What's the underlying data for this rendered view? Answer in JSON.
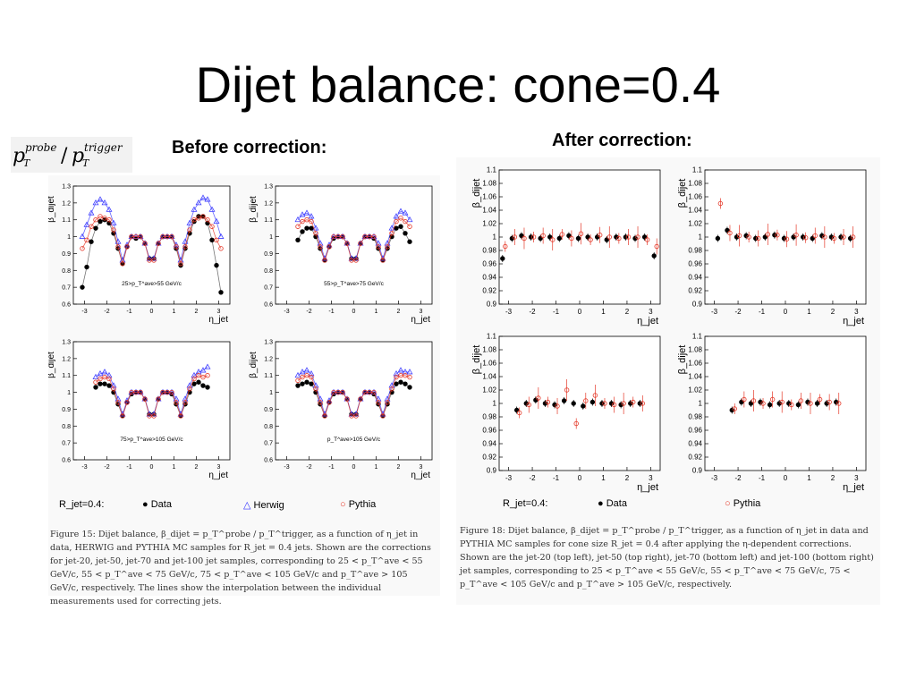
{
  "slide": {
    "title": "Dijet balance: cone=0.4",
    "formula": "p_T^probe / p_T^trigger",
    "before_label": "Before correction:",
    "after_label": "After correction:"
  },
  "left": {
    "legend": {
      "rjet": "R_jet=0.4:",
      "data": "Data",
      "herwig": "Herwig",
      "pythia": "Pythia"
    },
    "caption": "Figure 15: Dijet balance, β_dijet = p_T^probe / p_T^trigger, as a function of η_jet in data, HERWIG and PYTHIA MC samples for R_jet = 0.4 jets. Shown are the corrections for jet-20, jet-50, jet-70 and jet-100 jet samples, corresponding to 25 < p_T^ave < 55 GeV/c, 55 < p_T^ave < 75 GeV/c, 75 < p_T^ave < 105 GeV/c and p_T^ave > 105 GeV/c, respectively. The lines show the interpolation between the individual measurements used for correcting jets."
  },
  "right": {
    "legend": {
      "rjet": "R_jet=0.4:",
      "data": "Data",
      "pythia": "Pythia"
    },
    "caption": "Figure 18: Dijet balance, β_dijet = p_T^probe / p_T^trigger, as a function of η_jet in data and PYTHIA MC samples for cone size R_jet = 0.4 after applying the η-dependent corrections. Shown are the jet-20 (top left), jet-50 (top right), jet-70 (bottom left) and jet-100 (bottom right) jet samples, corresponding to 25 < p_T^ave < 55 GeV/c, 55 < p_T^ave < 75 GeV/c, 75 < p_T^ave < 105 GeV/c and p_T^ave > 105 GeV/c, respectively."
  },
  "chart_data": [
    {
      "type": "scatter",
      "id": "before-top-left",
      "xlabel": "η_jet",
      "ylabel": "β_dijet",
      "xlim": [
        -3.5,
        3.5
      ],
      "ylim": [
        0.6,
        1.3
      ],
      "xticks": [
        "-3",
        "-2",
        "-1",
        "0",
        "1",
        "2",
        "3"
      ],
      "yticks": [
        "0.6",
        "0.7",
        "0.8",
        "0.9",
        "1",
        "1.1",
        "1.2",
        "1.3"
      ],
      "annotation": "25>p_T^ave>55 GeV/c",
      "x": [
        -3.1,
        -2.9,
        -2.7,
        -2.5,
        -2.3,
        -2.1,
        -1.9,
        -1.7,
        -1.5,
        -1.3,
        -1.1,
        -0.9,
        -0.7,
        -0.5,
        -0.3,
        -0.1,
        0.1,
        0.3,
        0.5,
        0.7,
        0.9,
        1.1,
        1.3,
        1.5,
        1.7,
        1.9,
        2.1,
        2.3,
        2.5,
        2.7,
        2.9,
        3.1
      ],
      "series": [
        {
          "name": "Data",
          "values": [
            0.7,
            0.82,
            0.97,
            1.05,
            1.09,
            1.1,
            1.08,
            1.02,
            0.93,
            0.84,
            0.94,
            1.0,
            0.99,
            1.0,
            0.96,
            0.87,
            0.87,
            0.96,
            1.0,
            1.0,
            1.0,
            0.93,
            0.83,
            0.93,
            1.02,
            1.09,
            1.12,
            1.12,
            1.08,
            0.98,
            0.83,
            0.67
          ]
        },
        {
          "name": "Herwig",
          "values": [
            1.0,
            1.07,
            1.14,
            1.2,
            1.22,
            1.2,
            1.16,
            1.08,
            0.97,
            0.86,
            0.95,
            1.0,
            1.0,
            1.0,
            0.96,
            0.87,
            0.87,
            0.96,
            1.0,
            1.0,
            1.0,
            0.95,
            0.86,
            0.97,
            1.08,
            1.16,
            1.2,
            1.23,
            1.22,
            1.16,
            1.09,
            1.0
          ]
        },
        {
          "name": "Pythia",
          "values": [
            0.93,
            0.98,
            1.06,
            1.1,
            1.12,
            1.11,
            1.1,
            1.04,
            0.94,
            0.84,
            0.94,
            1.0,
            1.0,
            1.0,
            0.96,
            0.86,
            0.86,
            0.96,
            1.0,
            1.0,
            1.0,
            0.94,
            0.84,
            0.94,
            1.04,
            1.1,
            1.11,
            1.12,
            1.1,
            1.06,
            0.98,
            0.93
          ]
        }
      ]
    },
    {
      "type": "scatter",
      "id": "before-top-right",
      "xlabel": "η_jet",
      "ylabel": "β_dijet",
      "xlim": [
        -3.5,
        3.5
      ],
      "ylim": [
        0.6,
        1.3
      ],
      "xticks": [
        "-3",
        "-2",
        "-1",
        "0",
        "1",
        "2",
        "3"
      ],
      "yticks": [
        "0.6",
        "0.7",
        "0.8",
        "0.9",
        "1",
        "1.1",
        "1.2",
        "1.3"
      ],
      "annotation": "55>p_T^ave>75 GeV/c",
      "x": [
        -2.5,
        -2.3,
        -2.1,
        -1.9,
        -1.7,
        -1.5,
        -1.3,
        -1.1,
        -0.9,
        -0.7,
        -0.5,
        -0.3,
        -0.1,
        0.1,
        0.3,
        0.5,
        0.7,
        0.9,
        1.1,
        1.3,
        1.5,
        1.7,
        1.9,
        2.1,
        2.3,
        2.5
      ],
      "series": [
        {
          "name": "Data",
          "values": [
            0.98,
            1.03,
            1.05,
            1.05,
            1.0,
            0.93,
            0.86,
            0.94,
            0.99,
            1.0,
            1.0,
            0.96,
            0.87,
            0.87,
            0.96,
            1.0,
            1.0,
            0.99,
            0.93,
            0.86,
            0.93,
            1.0,
            1.05,
            1.06,
            1.02,
            0.97
          ]
        },
        {
          "name": "Herwig",
          "values": [
            1.1,
            1.13,
            1.14,
            1.12,
            1.05,
            0.96,
            0.87,
            0.95,
            1.0,
            1.0,
            1.0,
            0.96,
            0.87,
            0.87,
            0.96,
            1.0,
            1.0,
            1.0,
            0.96,
            0.87,
            0.96,
            1.05,
            1.12,
            1.15,
            1.14,
            1.1
          ]
        },
        {
          "name": "Pythia",
          "values": [
            1.06,
            1.09,
            1.1,
            1.09,
            1.02,
            0.94,
            0.86,
            0.94,
            1.0,
            1.0,
            1.0,
            0.96,
            0.86,
            0.86,
            0.96,
            1.0,
            1.0,
            1.0,
            0.94,
            0.86,
            0.94,
            1.02,
            1.09,
            1.11,
            1.09,
            1.06
          ]
        }
      ]
    },
    {
      "type": "scatter",
      "id": "before-bottom-left",
      "xlabel": "η_jet",
      "ylabel": "β_dijet",
      "xlim": [
        -3.5,
        3.5
      ],
      "ylim": [
        0.6,
        1.3
      ],
      "xticks": [
        "-3",
        "-2",
        "-1",
        "0",
        "1",
        "2",
        "3"
      ],
      "yticks": [
        "0.6",
        "0.7",
        "0.8",
        "0.9",
        "1",
        "1.1",
        "1.2",
        "1.3"
      ],
      "annotation": "75>p_T^ave>105 GeV/c",
      "x": [
        -2.5,
        -2.3,
        -2.1,
        -1.9,
        -1.7,
        -1.5,
        -1.3,
        -1.1,
        -0.9,
        -0.7,
        -0.5,
        -0.3,
        -0.1,
        0.1,
        0.3,
        0.5,
        0.7,
        0.9,
        1.1,
        1.3,
        1.5,
        1.7,
        1.9,
        2.1,
        2.3,
        2.5
      ],
      "series": [
        {
          "name": "Data",
          "values": [
            1.03,
            1.05,
            1.05,
            1.04,
            1.0,
            0.93,
            0.86,
            0.94,
            0.99,
            1.0,
            1.0,
            0.96,
            0.87,
            0.87,
            0.96,
            1.0,
            1.0,
            0.99,
            0.93,
            0.86,
            0.93,
            1.0,
            1.05,
            1.06,
            1.04,
            1.03
          ]
        },
        {
          "name": "Herwig",
          "values": [
            1.09,
            1.11,
            1.12,
            1.1,
            1.04,
            0.96,
            0.87,
            0.95,
            1.0,
            1.0,
            1.0,
            0.96,
            0.87,
            0.87,
            0.96,
            1.0,
            1.0,
            1.0,
            0.96,
            0.87,
            0.96,
            1.04,
            1.1,
            1.12,
            1.13,
            1.15
          ]
        },
        {
          "name": "Pythia",
          "values": [
            1.06,
            1.08,
            1.09,
            1.08,
            1.02,
            0.94,
            0.86,
            0.94,
            1.0,
            1.0,
            1.0,
            0.96,
            0.86,
            0.86,
            0.96,
            1.0,
            1.0,
            1.0,
            0.94,
            0.86,
            0.94,
            1.02,
            1.08,
            1.1,
            1.09,
            1.1
          ]
        }
      ]
    },
    {
      "type": "scatter",
      "id": "before-bottom-right",
      "xlabel": "η_jet",
      "ylabel": "β_dijet",
      "xlim": [
        -3.5,
        3.5
      ],
      "ylim": [
        0.6,
        1.3
      ],
      "xticks": [
        "-3",
        "-2",
        "-1",
        "0",
        "1",
        "2",
        "3"
      ],
      "yticks": [
        "0.6",
        "0.7",
        "0.8",
        "0.9",
        "1",
        "1.1",
        "1.2",
        "1.3"
      ],
      "annotation": "p_T^ave>105 GeV/c",
      "x": [
        -2.5,
        -2.3,
        -2.1,
        -1.9,
        -1.7,
        -1.5,
        -1.3,
        -1.1,
        -0.9,
        -0.7,
        -0.5,
        -0.3,
        -0.1,
        0.1,
        0.3,
        0.5,
        0.7,
        0.9,
        1.1,
        1.3,
        1.5,
        1.7,
        1.9,
        2.1,
        2.3,
        2.5
      ],
      "series": [
        {
          "name": "Data",
          "values": [
            1.04,
            1.05,
            1.06,
            1.05,
            1.0,
            0.93,
            0.86,
            0.94,
            0.99,
            1.0,
            1.0,
            0.96,
            0.87,
            0.87,
            0.96,
            1.0,
            1.0,
            0.99,
            0.93,
            0.86,
            0.93,
            1.0,
            1.05,
            1.06,
            1.05,
            1.03
          ]
        },
        {
          "name": "Herwig",
          "values": [
            1.1,
            1.12,
            1.13,
            1.11,
            1.04,
            0.96,
            0.87,
            0.95,
            1.0,
            1.0,
            1.0,
            0.96,
            0.87,
            0.87,
            0.96,
            1.0,
            1.0,
            1.0,
            0.96,
            0.87,
            0.96,
            1.04,
            1.11,
            1.13,
            1.12,
            1.12
          ]
        },
        {
          "name": "Pythia",
          "values": [
            1.07,
            1.09,
            1.1,
            1.09,
            1.02,
            0.94,
            0.86,
            0.94,
            1.0,
            1.0,
            1.0,
            0.96,
            0.86,
            0.86,
            0.96,
            1.0,
            1.0,
            1.0,
            0.94,
            0.86,
            0.94,
            1.02,
            1.09,
            1.1,
            1.1,
            1.09
          ]
        }
      ]
    },
    {
      "type": "scatter",
      "id": "after-top-left",
      "xlabel": "η_jet",
      "ylabel": "β_dijet",
      "xlim": [
        -3.4,
        3.4
      ],
      "ylim": [
        0.9,
        1.1
      ],
      "xticks": [
        "-3",
        "-2",
        "-1",
        "0",
        "1",
        "2",
        "3"
      ],
      "yticks": [
        "0.9",
        "0.92",
        "0.94",
        "0.96",
        "0.98",
        "1",
        "1.02",
        "1.04",
        "1.06",
        "1.08",
        "1.1"
      ],
      "x": [
        -3.2,
        -2.8,
        -2.4,
        -2.0,
        -1.6,
        -1.2,
        -0.8,
        -0.4,
        0.0,
        0.4,
        0.8,
        1.2,
        1.6,
        2.0,
        2.4,
        2.8,
        3.2
      ],
      "series": [
        {
          "name": "Data",
          "values": [
            0.968,
            0.998,
            1.002,
            1.0,
            0.998,
            1.0,
            0.998,
            1.002,
            0.998,
            1.0,
            1.0,
            0.996,
            1.0,
            1.0,
            0.998,
            1.0,
            0.972
          ]
        },
        {
          "name": "Pythia",
          "values": [
            0.986,
            1.0,
            0.998,
            1.0,
            1.002,
            0.996,
            1.004,
            0.998,
            1.005,
            0.996,
            1.003,
            1.0,
            0.998,
            1.0,
            1.0,
            0.996,
            0.986
          ]
        }
      ]
    },
    {
      "type": "scatter",
      "id": "after-top-right",
      "xlabel": "η_jet",
      "ylabel": "β_dijet",
      "xlim": [
        -3.4,
        3.4
      ],
      "ylim": [
        0.9,
        1.1
      ],
      "xticks": [
        "-3",
        "-2",
        "-1",
        "0",
        "1",
        "2",
        "3"
      ],
      "yticks": [
        "0.9",
        "0.92",
        "0.94",
        "0.96",
        "0.98",
        "1",
        "1.02",
        "1.04",
        "1.06",
        "1.08",
        "1.1"
      ],
      "x": [
        -2.8,
        -2.4,
        -2.0,
        -1.6,
        -1.2,
        -0.8,
        -0.4,
        0.0,
        0.4,
        0.8,
        1.2,
        1.6,
        2.0,
        2.4,
        2.8
      ],
      "series": [
        {
          "name": "Data",
          "values": [
            0.998,
            1.01,
            1.0,
            1.002,
            0.998,
            1.0,
            1.003,
            0.998,
            1.0,
            1.0,
            0.998,
            1.002,
            1.0,
            1.0,
            0.998
          ]
        },
        {
          "name": "Pythia",
          "values": [
            1.05,
            1.006,
            1.002,
            1.0,
            0.998,
            1.004,
            1.003,
            0.997,
            1.003,
            0.999,
            1.002,
            1.0,
            0.998,
            1.0,
            1.0
          ]
        }
      ]
    },
    {
      "type": "scatter",
      "id": "after-bottom-left",
      "xlabel": "η_jet",
      "ylabel": "β_dijet",
      "xlim": [
        -3.4,
        3.4
      ],
      "ylim": [
        0.9,
        1.1
      ],
      "xticks": [
        "-3",
        "-2",
        "-1",
        "0",
        "1",
        "2",
        "3"
      ],
      "yticks": [
        "0.9",
        "0.92",
        "0.94",
        "0.96",
        "0.98",
        "1",
        "1.02",
        "1.04",
        "1.06",
        "1.08",
        "1.1"
      ],
      "x": [
        -2.6,
        -2.2,
        -1.8,
        -1.4,
        -1.0,
        -0.6,
        -0.2,
        0.2,
        0.6,
        1.0,
        1.4,
        1.8,
        2.2,
        2.6
      ],
      "series": [
        {
          "name": "Data",
          "values": [
            0.99,
            1.0,
            1.005,
            1.0,
            0.998,
            1.004,
            1.0,
            0.996,
            1.002,
            1.0,
            1.0,
            0.998,
            1.0,
            1.0
          ]
        },
        {
          "name": "Pythia",
          "values": [
            0.986,
            0.998,
            1.008,
            1.002,
            0.996,
            1.02,
            0.97,
            1.004,
            1.012,
            1.0,
            0.998,
            1.0,
            1.002,
            1.0
          ]
        }
      ]
    },
    {
      "type": "scatter",
      "id": "after-bottom-right",
      "xlabel": "η_jet",
      "ylabel": "β_dijet",
      "xlim": [
        -3.4,
        3.4
      ],
      "ylim": [
        0.9,
        1.1
      ],
      "xticks": [
        "-3",
        "-2",
        "-1",
        "0",
        "1",
        "2",
        "3"
      ],
      "yticks": [
        "0.9",
        "0.92",
        "0.94",
        "0.96",
        "0.98",
        "1",
        "1.02",
        "1.04",
        "1.06",
        "1.08",
        "1.1"
      ],
      "x": [
        -2.2,
        -1.8,
        -1.4,
        -1.0,
        -0.6,
        -0.2,
        0.2,
        0.6,
        1.0,
        1.4,
        1.8,
        2.2
      ],
      "series": [
        {
          "name": "Data",
          "values": [
            0.99,
            1.002,
            1.0,
            1.002,
            0.998,
            1.0,
            1.0,
            0.998,
            1.002,
            1.0,
            1.0,
            1.002
          ]
        },
        {
          "name": "Pythia",
          "values": [
            0.992,
            1.006,
            1.004,
            1.0,
            1.006,
            1.002,
            0.998,
            1.004,
            1.0,
            1.006,
            1.002,
            1.0
          ]
        }
      ]
    }
  ]
}
